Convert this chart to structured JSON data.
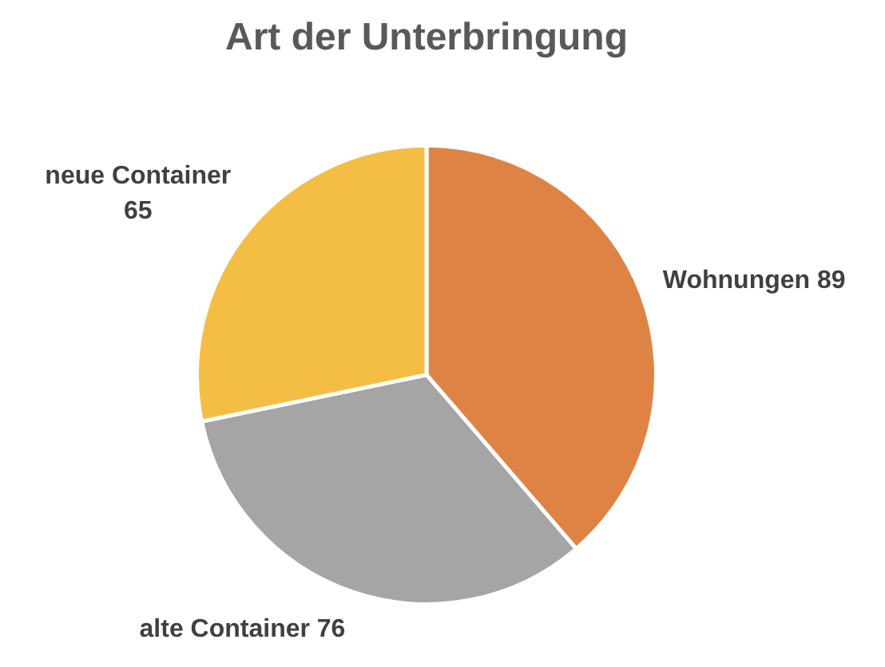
{
  "chart_data": {
    "type": "pie",
    "title": "Art der Unterbringung",
    "categories": [
      "Wohnungen",
      "alte Container",
      "neue Container"
    ],
    "values": [
      89,
      76,
      65
    ],
    "colors": [
      "#df8344",
      "#a5a5a5",
      "#f4be45"
    ],
    "data_labels": true
  }
}
